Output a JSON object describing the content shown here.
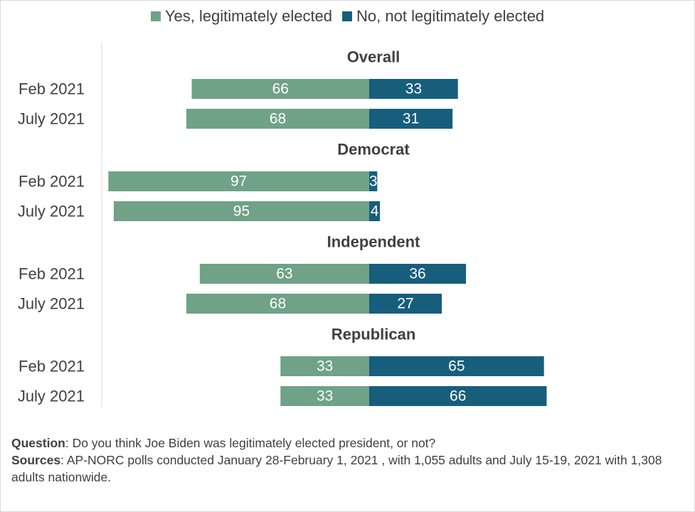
{
  "colors": {
    "yes": "#6fa287",
    "no": "#175e7d",
    "axis": "#d9d9d9",
    "text": "#404040",
    "label": "#ffffff"
  },
  "legend": {
    "yes_label": "Yes, legitimately elected",
    "no_label": "No, not legitimately elected"
  },
  "chart_data": {
    "type": "bar",
    "orientation": "horizontal-diverging",
    "series": [
      {
        "name": "Yes, legitimately elected",
        "key": "yes"
      },
      {
        "name": "No, not legitimately elected",
        "key": "no"
      }
    ],
    "groups": [
      {
        "title": "Overall",
        "rows": [
          {
            "label": "Feb 2021",
            "yes": 66,
            "no": 33
          },
          {
            "label": "July 2021",
            "yes": 68,
            "no": 31
          }
        ]
      },
      {
        "title": "Democrat",
        "rows": [
          {
            "label": "Feb 2021",
            "yes": 97,
            "no": 3
          },
          {
            "label": "July 2021",
            "yes": 95,
            "no": 4
          }
        ]
      },
      {
        "title": "Independent",
        "rows": [
          {
            "label": "Feb 2021",
            "yes": 63,
            "no": 36
          },
          {
            "label": "July 2021",
            "yes": 68,
            "no": 27
          }
        ]
      },
      {
        "title": "Republican",
        "rows": [
          {
            "label": "Feb 2021",
            "yes": 33,
            "no": 65
          },
          {
            "label": "July 2021",
            "yes": 33,
            "no": 66
          }
        ]
      }
    ],
    "legend_position": "top",
    "grid": false
  },
  "notes": {
    "question_label": "Question",
    "question_text": ": Do you think Joe Biden was legitimately elected president, or not?",
    "sources_label": "Sources",
    "sources_text": ": AP-NORC polls conducted January 28-February 1, 2021 , with 1,055 adults  and July 15-19, 2021 with 1,308 adults nationwide."
  }
}
